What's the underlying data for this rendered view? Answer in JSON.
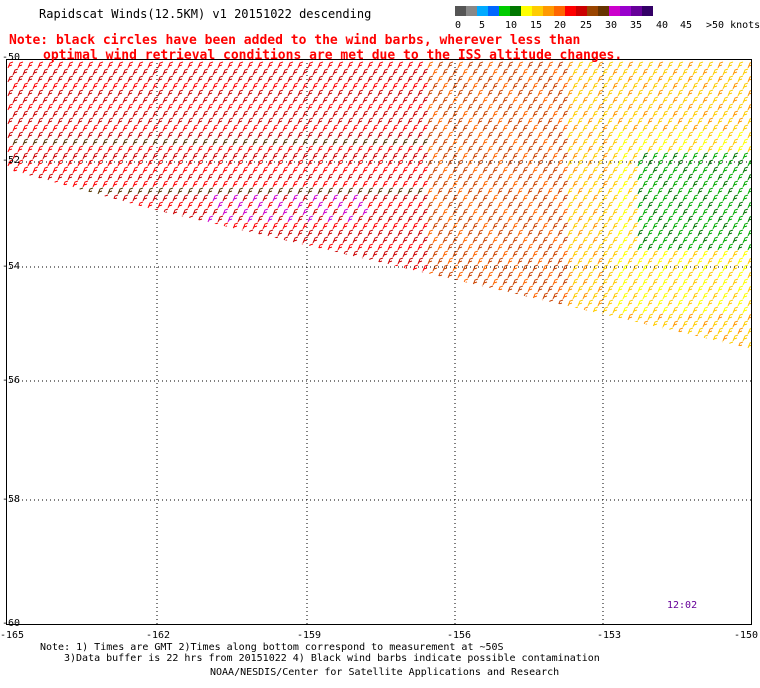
{
  "header": {
    "title": "Rapidscat Winds(12.5KM) v1 20151022 descending",
    "note_line1": "Note: black circles have been added to the wind barbs, wherever less than",
    "note_line2": "optimal wind retrieval conditions are met due to the ISS altitude changes."
  },
  "legend": {
    "colors": [
      "#555555",
      "#888888",
      "#00aaff",
      "#0066ff",
      "#00cc00",
      "#007700",
      "#ffff00",
      "#ffcc00",
      "#ff9900",
      "#ff6600",
      "#ff0000",
      "#cc0000",
      "#994400",
      "#663300",
      "#cc00cc",
      "#9900cc",
      "#660099",
      "#330066"
    ],
    "labels": [
      "0",
      "5",
      "10",
      "15",
      "20",
      "25",
      "30",
      "35",
      "40",
      "45",
      ">50 knots"
    ],
    "units": "knots"
  },
  "map": {
    "lat_labels": [
      "-50",
      "-52",
      "-54",
      "-56",
      "-58",
      "-60"
    ],
    "lon_labels": [
      "-165",
      "-162",
      "-159",
      "-156",
      "-153",
      "-150"
    ],
    "timestamp": "12:02"
  },
  "footer": {
    "note_line1": "Note: 1) Times are GMT 2)Times along bottom correspond to measurement at ~50S",
    "note_line2": "3)Data buffer is 22 hrs from 20151022 4) Black wind barbs indicate possible contamination",
    "credit": "NOAA/NESDIS/Center for Satellite Applications and Research"
  }
}
